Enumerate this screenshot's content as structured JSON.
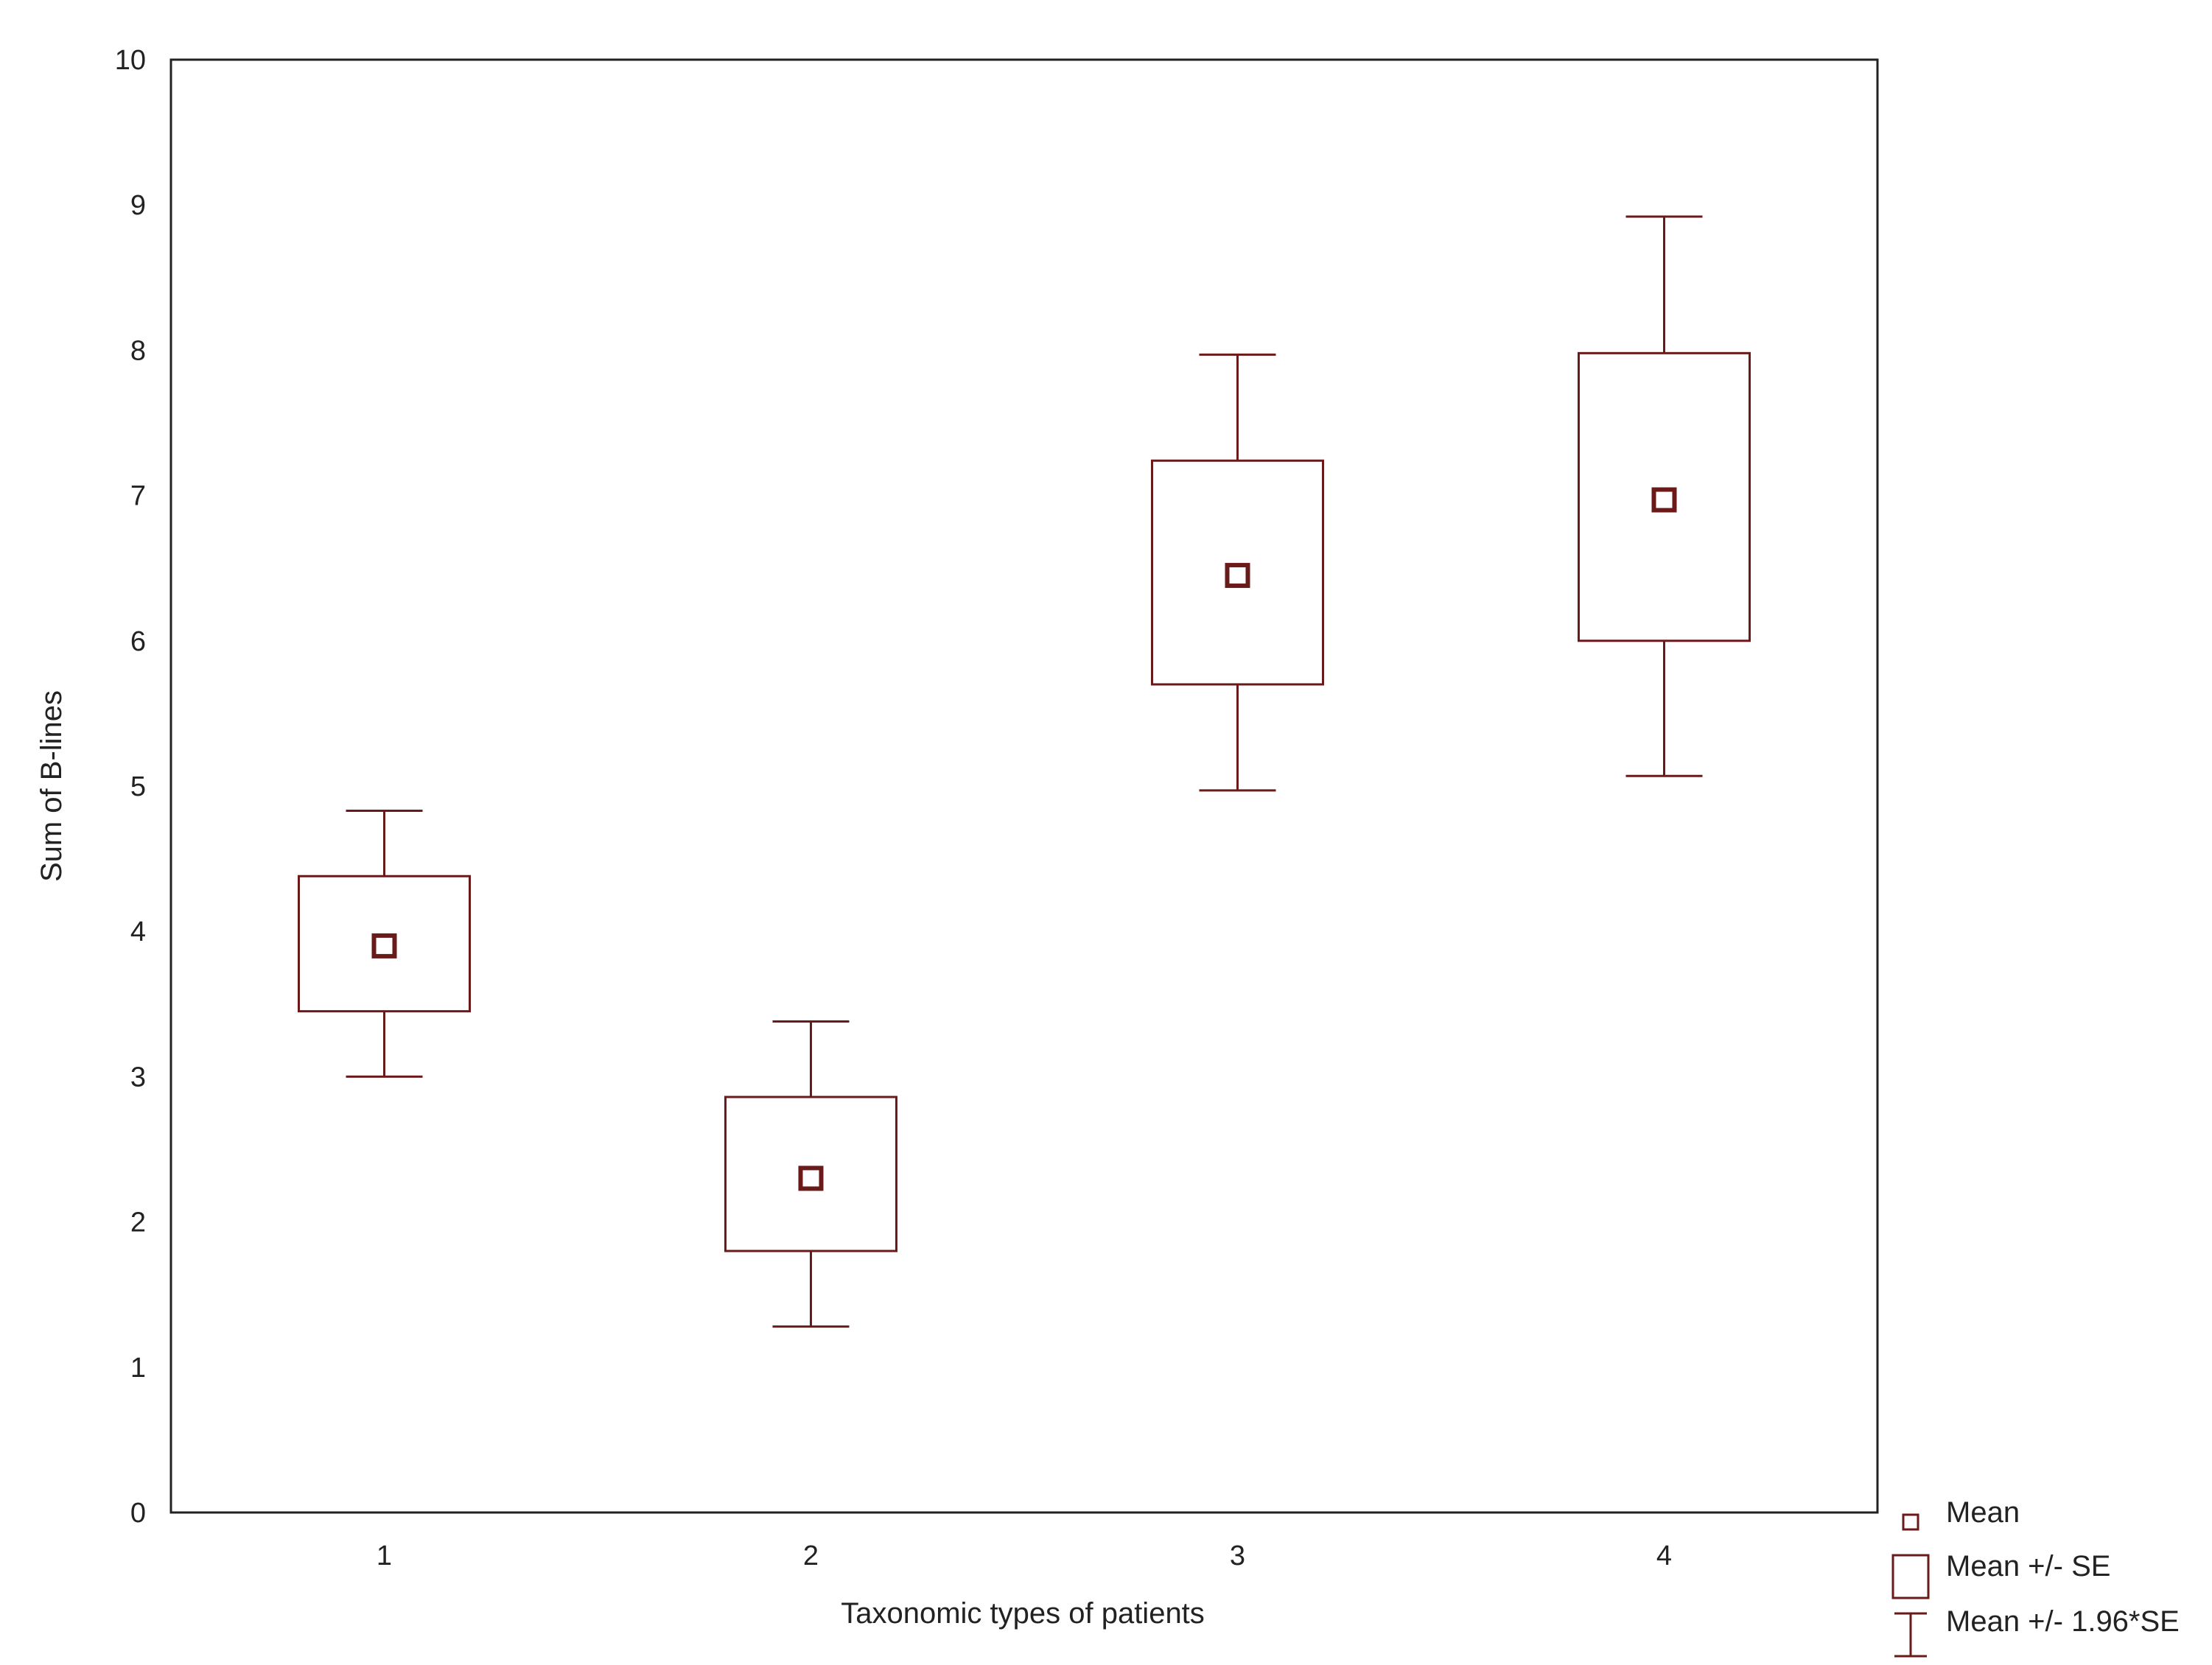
{
  "chart_data": {
    "type": "box",
    "title": "",
    "xlabel": "Taxonomic types of patients",
    "ylabel": "Sum of B-lines",
    "ylim": [
      0,
      10
    ],
    "yticks": [
      "0",
      "1",
      "2",
      "3",
      "4",
      "5",
      "6",
      "7",
      "8",
      "9",
      "10"
    ],
    "grid": false,
    "legend_position": "bottom-right, outside plot",
    "color": "#6b1a1a",
    "categories": [
      "1",
      "2",
      "3",
      "4"
    ],
    "series": [
      {
        "category": "1",
        "mean": 3.9,
        "se_low": 3.45,
        "se_high": 4.38,
        "ci_low": 3.0,
        "ci_high": 4.83
      },
      {
        "category": "2",
        "mean": 2.3,
        "se_low": 1.8,
        "se_high": 2.86,
        "ci_low": 1.28,
        "ci_high": 3.38
      },
      {
        "category": "3",
        "mean": 6.45,
        "se_low": 5.7,
        "se_high": 7.24,
        "ci_low": 4.97,
        "ci_high": 7.97
      },
      {
        "category": "4",
        "mean": 6.97,
        "se_low": 6.0,
        "se_high": 7.98,
        "ci_low": 5.07,
        "ci_high": 8.92
      }
    ],
    "legend": [
      {
        "symbol": "mean-marker",
        "label": "Mean"
      },
      {
        "symbol": "se-box",
        "label": "Mean +/- SE"
      },
      {
        "symbol": "ci-whisker",
        "label": "Mean +/- 1.96*SE"
      }
    ]
  }
}
